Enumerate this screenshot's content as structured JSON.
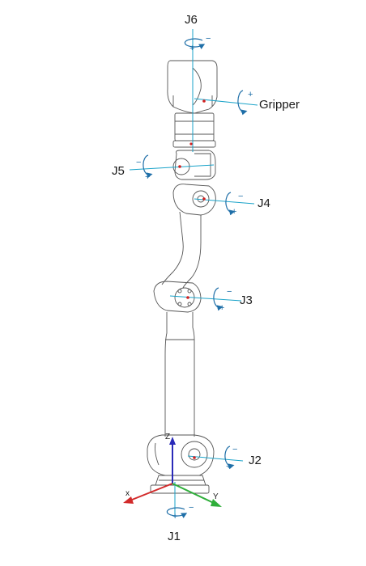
{
  "joints": {
    "j6": "J6",
    "gripper": "Gripper",
    "j5": "J5",
    "j4": "J4",
    "j3": "J3",
    "j2": "J2",
    "j1": "J1"
  },
  "axes": {
    "x": "x",
    "y": "Y",
    "z": "Z"
  },
  "signs": {
    "plus": "+",
    "minus": "−"
  },
  "colors": {
    "outline": "#555555",
    "joint_axis": "#1aa3c9",
    "rotation_arrow": "#1f6fa8",
    "x_axis": "#d22a2a",
    "y_axis": "#2fae3a",
    "z_axis": "#2a2ab8",
    "pivot_dot": "#d22020"
  }
}
